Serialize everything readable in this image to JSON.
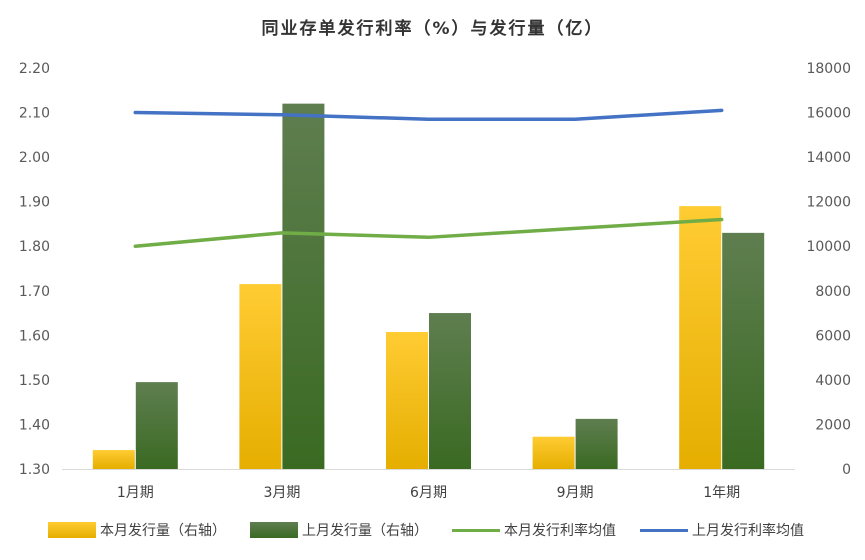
{
  "chart_data": {
    "type": "bar",
    "title": "同业存单发行利率（%）与发行量（亿）",
    "categories": [
      "1月期",
      "3月期",
      "6月期",
      "9月期",
      "1年期"
    ],
    "y_left": {
      "range": [
        1.3,
        2.2
      ],
      "ticks": [
        "1.30",
        "1.40",
        "1.50",
        "1.60",
        "1.70",
        "1.80",
        "1.90",
        "2.00",
        "2.10",
        "2.20"
      ]
    },
    "y_right": {
      "range": [
        0,
        18000
      ],
      "ticks": [
        "0",
        "2000",
        "4000",
        "6000",
        "8000",
        "10000",
        "12000",
        "14000",
        "16000",
        "18000"
      ]
    },
    "series": [
      {
        "name": "本月发行量（右轴）",
        "kind": "bar",
        "axis": "right",
        "color": "#F2B800",
        "values": [
          850,
          8300,
          6150,
          1450,
          11800
        ]
      },
      {
        "name": "上月发行量（右轴）",
        "kind": "bar",
        "axis": "right",
        "color": "#3A6626",
        "values": [
          3900,
          16400,
          7000,
          2250,
          10600
        ]
      },
      {
        "name": "本月发行利率均值",
        "kind": "line",
        "axis": "left",
        "color": "#70AD47",
        "values": [
          1.8,
          1.83,
          1.82,
          1.84,
          1.86
        ]
      },
      {
        "name": "上月发行利率均值",
        "kind": "line",
        "axis": "left",
        "color": "#4472C4",
        "values": [
          2.1,
          2.095,
          2.085,
          2.085,
          2.105
        ]
      }
    ],
    "grid": false,
    "legend_position": "bottom"
  }
}
